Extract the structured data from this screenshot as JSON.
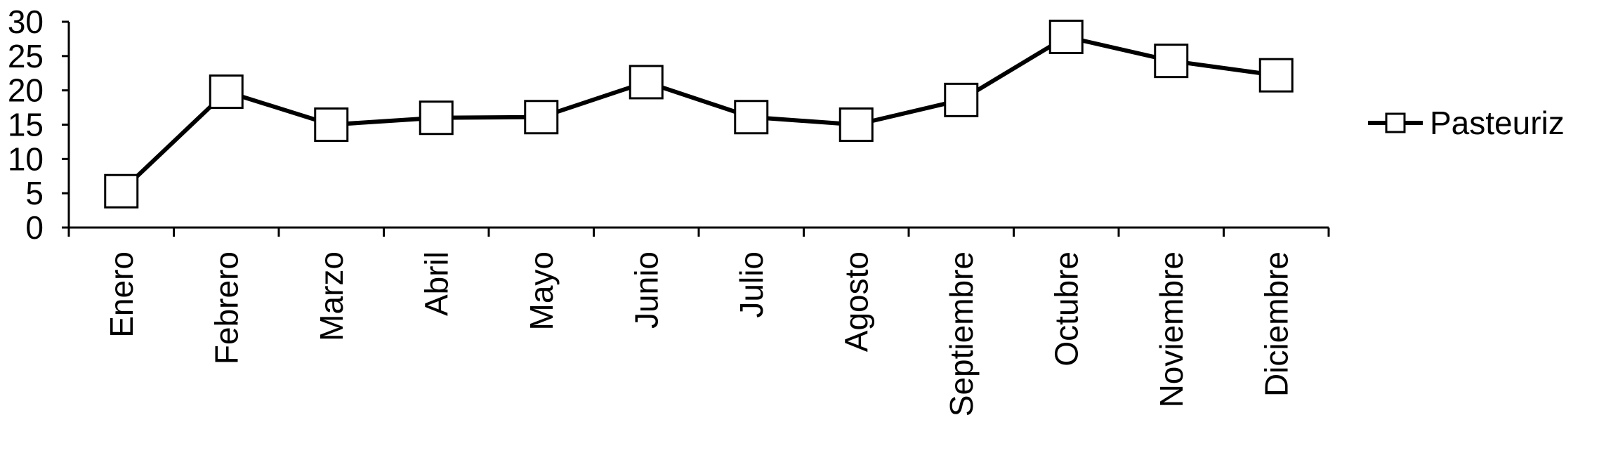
{
  "chart_data": {
    "type": "line",
    "categories": [
      "Enero",
      "Febrero",
      "Marzo",
      "Abril",
      "Mayo",
      "Junio",
      "Julio",
      "Agosto",
      "Septiembre",
      "Octubre",
      "Noviembre",
      "Diciembre"
    ],
    "series": [
      {
        "name": "Pasteuriz",
        "values": [
          5.3,
          19.8,
          15.0,
          16.0,
          16.1,
          21.2,
          16.1,
          15.0,
          18.6,
          27.8,
          24.3,
          22.2
        ]
      }
    ],
    "y_ticks": [
      0,
      5,
      10,
      15,
      20,
      25,
      30
    ],
    "ylim": [
      0,
      30
    ],
    "title": "",
    "xlabel": "",
    "ylabel": "",
    "grid": false,
    "legend_position": "right",
    "marker": "open-square",
    "line_color": "#000000"
  }
}
